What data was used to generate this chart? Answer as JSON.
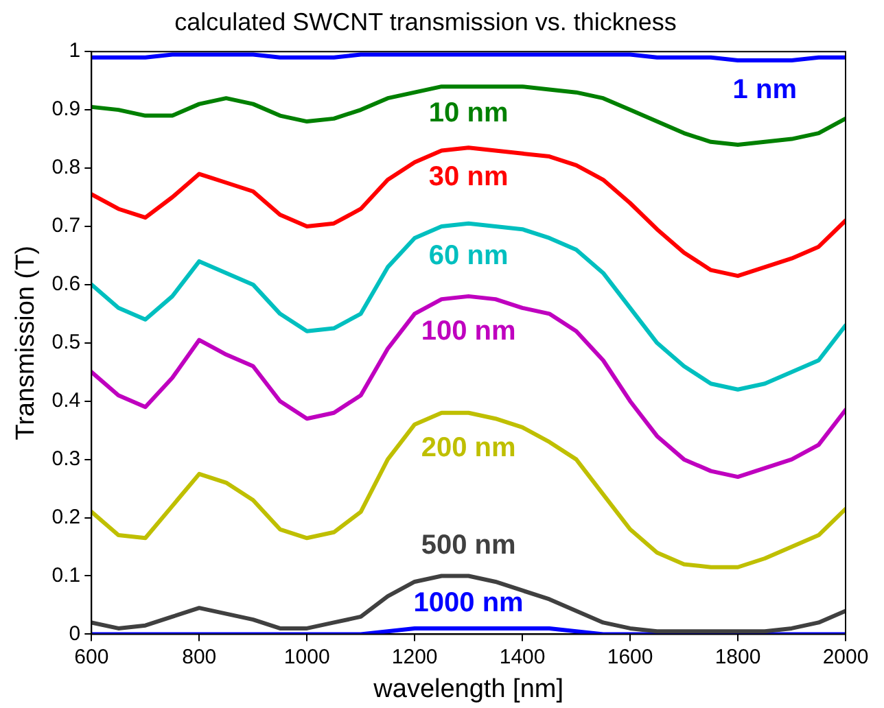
{
  "chart_data": {
    "type": "line",
    "title": "calculated SWCNT transmission vs. thickness",
    "xlabel": "wavelength [nm]",
    "ylabel": "Transmission (T)",
    "x": [
      600,
      650,
      700,
      750,
      800,
      850,
      900,
      950,
      1000,
      1050,
      1100,
      1150,
      1200,
      1250,
      1300,
      1350,
      1400,
      1450,
      1500,
      1550,
      1600,
      1650,
      1700,
      1750,
      1800,
      1850,
      1900,
      1950,
      2000
    ],
    "xlim": [
      600,
      2000
    ],
    "xticks": [
      600,
      800,
      1000,
      1200,
      1400,
      1600,
      1800,
      2000
    ],
    "ylim": [
      0,
      1
    ],
    "yticks": [
      0,
      0.1,
      0.2,
      0.3,
      0.4,
      0.5,
      0.6,
      0.7,
      0.8,
      0.9,
      1
    ],
    "grid": false,
    "legend": false,
    "marker": "none",
    "line_style": "solid",
    "series": [
      {
        "name": "1 nm",
        "color": "#0000ff",
        "values": [
          0.99,
          0.99,
          0.99,
          0.995,
          0.995,
          0.995,
          0.995,
          0.99,
          0.99,
          0.99,
          0.995,
          0.995,
          0.995,
          0.995,
          0.995,
          0.995,
          0.995,
          0.995,
          0.995,
          0.995,
          0.995,
          0.99,
          0.99,
          0.99,
          0.985,
          0.985,
          0.985,
          0.99,
          0.99
        ]
      },
      {
        "name": "10 nm",
        "color": "#008000",
        "values": [
          0.905,
          0.9,
          0.89,
          0.89,
          0.91,
          0.92,
          0.91,
          0.89,
          0.88,
          0.885,
          0.9,
          0.92,
          0.93,
          0.94,
          0.94,
          0.94,
          0.94,
          0.935,
          0.93,
          0.92,
          0.9,
          0.88,
          0.86,
          0.845,
          0.84,
          0.845,
          0.85,
          0.86,
          0.885
        ]
      },
      {
        "name": "30 nm",
        "color": "#ff0000",
        "values": [
          0.755,
          0.73,
          0.715,
          0.75,
          0.79,
          0.775,
          0.76,
          0.72,
          0.7,
          0.705,
          0.73,
          0.78,
          0.81,
          0.83,
          0.835,
          0.83,
          0.825,
          0.82,
          0.805,
          0.78,
          0.74,
          0.695,
          0.655,
          0.625,
          0.615,
          0.63,
          0.645,
          0.665,
          0.71
        ]
      },
      {
        "name": "60 nm",
        "color": "#00bfbf",
        "values": [
          0.6,
          0.56,
          0.54,
          0.58,
          0.64,
          0.62,
          0.6,
          0.55,
          0.52,
          0.525,
          0.55,
          0.63,
          0.68,
          0.7,
          0.705,
          0.7,
          0.695,
          0.68,
          0.66,
          0.62,
          0.56,
          0.5,
          0.46,
          0.43,
          0.42,
          0.43,
          0.45,
          0.47,
          0.53
        ]
      },
      {
        "name": "100 nm",
        "color": "#bf00bf",
        "values": [
          0.45,
          0.41,
          0.39,
          0.44,
          0.505,
          0.48,
          0.46,
          0.4,
          0.37,
          0.38,
          0.41,
          0.49,
          0.55,
          0.575,
          0.58,
          0.575,
          0.56,
          0.55,
          0.52,
          0.47,
          0.4,
          0.34,
          0.3,
          0.28,
          0.27,
          0.285,
          0.3,
          0.325,
          0.385
        ]
      },
      {
        "name": "200 nm",
        "color": "#bfbf00",
        "values": [
          0.21,
          0.17,
          0.165,
          0.22,
          0.275,
          0.26,
          0.23,
          0.18,
          0.165,
          0.175,
          0.21,
          0.3,
          0.36,
          0.38,
          0.38,
          0.37,
          0.355,
          0.33,
          0.3,
          0.24,
          0.18,
          0.14,
          0.12,
          0.115,
          0.115,
          0.13,
          0.15,
          0.17,
          0.215
        ]
      },
      {
        "name": "500 nm",
        "color": "#404040",
        "values": [
          0.02,
          0.01,
          0.015,
          0.03,
          0.045,
          0.035,
          0.025,
          0.01,
          0.01,
          0.02,
          0.03,
          0.065,
          0.09,
          0.1,
          0.1,
          0.09,
          0.075,
          0.06,
          0.04,
          0.02,
          0.01,
          0.005,
          0.005,
          0.005,
          0.005,
          0.005,
          0.01,
          0.02,
          0.04
        ]
      },
      {
        "name": "1000 nm",
        "color": "#0000ff",
        "values": [
          0,
          0,
          0,
          0,
          0,
          0,
          0,
          0,
          0,
          0,
          0,
          0.005,
          0.01,
          0.01,
          0.01,
          0.01,
          0.01,
          0.01,
          0.005,
          0,
          0,
          0,
          0,
          0,
          0,
          0,
          0,
          0,
          0
        ]
      }
    ]
  }
}
